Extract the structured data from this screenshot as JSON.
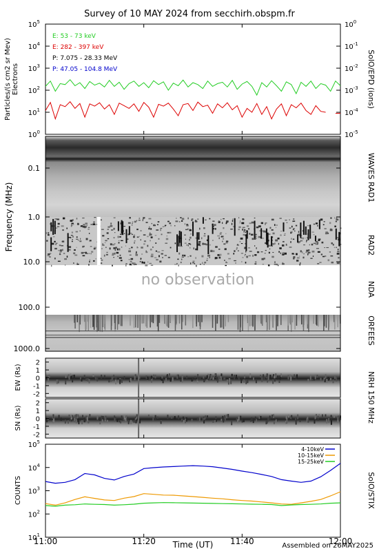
{
  "title": "Survey of 10 MAY 2024 from secchirh.obspm.fr",
  "footer": "Assembled on 26MAY2025",
  "time_axis": {
    "label": "Time (UT)",
    "ticks": [
      "11:00",
      "11:20",
      "11:40",
      "12:00"
    ],
    "tick_values_min": [
      0,
      20,
      40,
      60
    ],
    "range_min": [
      0,
      60
    ]
  },
  "colors": {
    "green": "#22cc22",
    "red": "#dd0000",
    "black": "#000000",
    "blue": "#0000cc",
    "orange": "#ee9900",
    "sky": "#3399ff"
  },
  "chart_data": [
    {
      "type": "line",
      "panel": "particles",
      "ylabel": "Particles/(s cm2 sr Mev)",
      "ylabel2": "Electrons",
      "right_label": "SolO/EPD (ions)",
      "yscale": "log",
      "ylim": [
        1,
        100000
      ],
      "yticks": [
        "10^0",
        "10^1",
        "10^2",
        "10^3",
        "10^4",
        "10^5"
      ],
      "ylim_right": [
        1e-05,
        1
      ],
      "yticks_right": [
        "10^-5",
        "10^-4",
        "10^-3",
        "10^-2",
        "10^-1",
        "10^0"
      ],
      "legend": [
        {
          "text": "E: 53 - 73 keV",
          "color": "#22cc22"
        },
        {
          "text": "E: 282 - 397 keV",
          "color": "#dd0000"
        },
        {
          "text": "P: 7.075 - 28.33 MeV",
          "color": "#000000"
        },
        {
          "text": "P: 47.05 - 104.8 MeV",
          "color": "#0000cc"
        }
      ],
      "series": [
        {
          "name": "E: 53 - 73 keV",
          "color": "#22cc22",
          "x": [
            0,
            1,
            2,
            3,
            4,
            5,
            6,
            7,
            8,
            9,
            10,
            11,
            12,
            13,
            14,
            15,
            16,
            17,
            18,
            19,
            20,
            21,
            22,
            23,
            24,
            25,
            26,
            27,
            28,
            29,
            30,
            31,
            32,
            33,
            34,
            35,
            36,
            37,
            38,
            39,
            40,
            41,
            42,
            43,
            44,
            45,
            46,
            47,
            48,
            49,
            50,
            51,
            52,
            53,
            54,
            55,
            56,
            57,
            58,
            59,
            60
          ],
          "y": [
            150,
            260,
            90,
            200,
            180,
            300,
            160,
            220,
            120,
            250,
            170,
            210,
            140,
            280,
            150,
            230,
            110,
            200,
            260,
            150,
            220,
            130,
            270,
            180,
            240,
            100,
            210,
            160,
            290,
            140,
            220,
            180,
            120,
            260,
            150,
            200,
            230,
            140,
            280,
            110,
            190,
            250,
            150,
            60,
            220,
            140,
            270,
            160,
            90,
            240,
            180,
            70,
            230,
            150,
            260,
            120,
            200,
            170,
            90,
            260,
            160
          ]
        },
        {
          "name": "E: 282 - 397 keV",
          "color": "#dd0000",
          "x": [
            0,
            1,
            2,
            3,
            4,
            5,
            6,
            7,
            8,
            9,
            10,
            11,
            12,
            13,
            14,
            15,
            16,
            17,
            18,
            19,
            20,
            21,
            22,
            23,
            24,
            25,
            26,
            27,
            28,
            29,
            30,
            31,
            32,
            33,
            34,
            35,
            36,
            37,
            38,
            39,
            40,
            41,
            42,
            43,
            44,
            45,
            46,
            47,
            48,
            49,
            50,
            51,
            52,
            53,
            54,
            55,
            56,
            57,
            58,
            59,
            60
          ],
          "y": [
            12,
            28,
            5,
            22,
            18,
            30,
            15,
            25,
            6,
            24,
            19,
            27,
            14,
            22,
            8,
            26,
            20,
            15,
            24,
            11,
            28,
            17,
            6,
            23,
            19,
            26,
            14,
            7,
            22,
            25,
            12,
            29,
            18,
            21,
            9,
            24,
            16,
            27,
            13,
            20,
            6,
            15,
            10,
            25,
            8,
            18,
            5,
            14,
            24,
            7,
            22,
            16,
            26,
            12,
            8,
            20,
            11,
            10,
            null,
            9,
            9
          ]
        }
      ]
    },
    {
      "type": "heatmap",
      "panel": "waves-rad1",
      "ylabel": "Frequency (MHz)",
      "right_label": "WAVES RAD1",
      "yticks": [
        "0.1",
        "1.0"
      ]
    },
    {
      "type": "heatmap",
      "panel": "rad2",
      "right_label": "RAD2",
      "yticks": [
        "10.0"
      ],
      "data_gap_min": [
        10.5,
        11.2
      ]
    },
    {
      "type": "heatmap",
      "panel": "nda",
      "right_label": "NDA",
      "yticks": [
        "100.0"
      ],
      "annotation": "no observation"
    },
    {
      "type": "heatmap",
      "panel": "orfees",
      "right_label": "ORFEES",
      "yticks": [
        "1000.0"
      ]
    },
    {
      "type": "heatmap",
      "panel": "nrh-ew",
      "ylabel": "EW (Rs)",
      "right_label": "NRH 150 MHz",
      "yrange": [
        -2.5,
        2.5
      ],
      "yticks": [
        "2",
        "1",
        "0",
        "-1",
        "-2"
      ]
    },
    {
      "type": "heatmap",
      "panel": "nrh-sn",
      "ylabel": "SN (Rs)",
      "yrange": [
        -2.5,
        2.5
      ],
      "yticks": [
        "2",
        "1",
        "0",
        "-1",
        "-2"
      ]
    },
    {
      "type": "line",
      "panel": "stix",
      "ylabel": "COUNTS",
      "right_label": "SolO/STIX",
      "yscale": "log",
      "ylim": [
        10,
        100000
      ],
      "yticks": [
        "10^1",
        "10^2",
        "10^3",
        "10^4",
        "10^5"
      ],
      "legend": [
        {
          "text": "4-10keV",
          "color": "#0000cc"
        },
        {
          "text": "10-15keV",
          "color": "#ee9900"
        },
        {
          "text": "15-25keV",
          "color": "#22cc22"
        }
      ],
      "series": [
        {
          "name": "4-10keV",
          "color": "#0000cc",
          "x": [
            0,
            2,
            4,
            6,
            8,
            10,
            12,
            14,
            16,
            18,
            20,
            22,
            24,
            26,
            28,
            30,
            32,
            34,
            36,
            38,
            40,
            42,
            44,
            46,
            48,
            50,
            52,
            54,
            56,
            58,
            60
          ],
          "y": [
            2500,
            2100,
            2300,
            3000,
            5500,
            4800,
            3400,
            2900,
            4100,
            5200,
            9000,
            9800,
            10500,
            11000,
            11500,
            12000,
            11500,
            10800,
            9500,
            8300,
            7000,
            6000,
            5000,
            4100,
            3000,
            2600,
            2300,
            2600,
            4000,
            7500,
            15000
          ]
        },
        {
          "name": "10-15keV",
          "color": "#ee9900",
          "x": [
            0,
            2,
            4,
            6,
            8,
            10,
            12,
            14,
            16,
            18,
            20,
            22,
            24,
            26,
            28,
            30,
            32,
            34,
            36,
            38,
            40,
            42,
            44,
            46,
            48,
            50,
            52,
            54,
            56,
            58,
            60
          ],
          "y": [
            280,
            240,
            300,
            420,
            550,
            470,
            400,
            380,
            480,
            560,
            750,
            700,
            650,
            640,
            600,
            560,
            520,
            480,
            450,
            410,
            380,
            360,
            330,
            300,
            270,
            260,
            300,
            350,
            420,
            600,
            900
          ]
        },
        {
          "name": "15-25keV",
          "color": "#22cc22",
          "x": [
            0,
            2,
            4,
            6,
            8,
            10,
            12,
            14,
            16,
            18,
            20,
            22,
            24,
            26,
            28,
            30,
            32,
            34,
            36,
            38,
            40,
            42,
            44,
            46,
            48,
            50,
            52,
            54,
            56,
            58,
            60
          ],
          "y": [
            230,
            215,
            240,
            250,
            270,
            260,
            255,
            240,
            250,
            265,
            290,
            300,
            310,
            305,
            300,
            295,
            290,
            285,
            280,
            275,
            270,
            265,
            260,
            255,
            230,
            245,
            255,
            260,
            270,
            290,
            300
          ]
        }
      ]
    }
  ]
}
